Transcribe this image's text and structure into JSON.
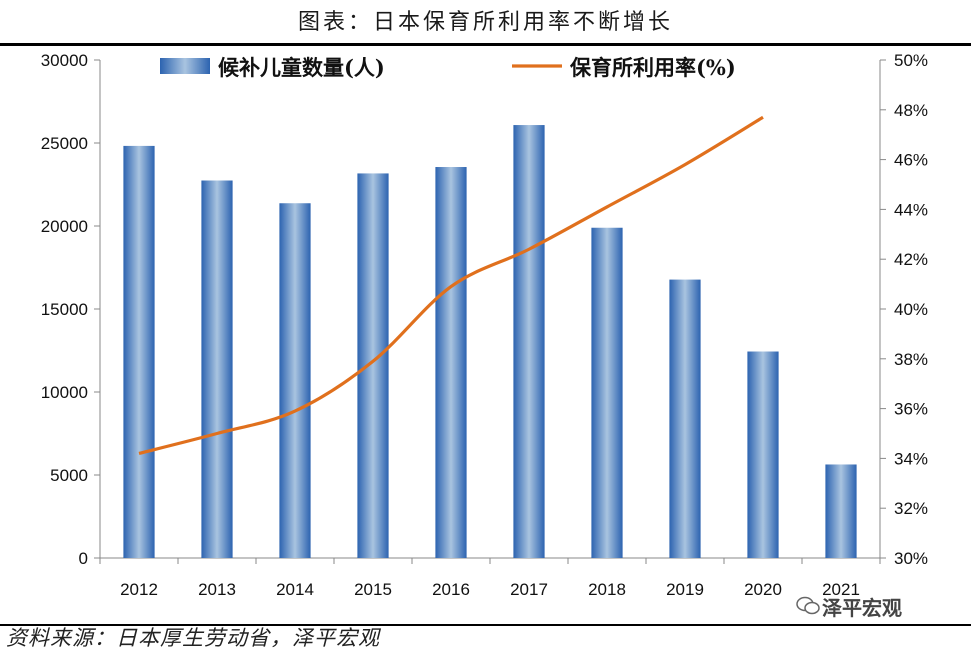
{
  "title": "图表：日本保育所利用率不断增长",
  "source": "资料来源：日本厚生劳动省，泽平宏观",
  "watermark": "泽平宏观",
  "chart_data": {
    "type": "bar+line",
    "categories": [
      "2012",
      "2013",
      "2014",
      "2015",
      "2016",
      "2017",
      "2018",
      "2019",
      "2020",
      "2021"
    ],
    "series": [
      {
        "name": "候补儿童数量(人)",
        "type": "bar",
        "axis": "left",
        "values": [
          24825,
          22741,
          21371,
          23167,
          23553,
          26081,
          19895,
          16772,
          12439,
          5634
        ],
        "color": "#3f7fc4"
      },
      {
        "name": "保育所利用率(%)",
        "type": "line",
        "axis": "right",
        "values": [
          34.2,
          35.0,
          35.9,
          37.9,
          40.9,
          42.4,
          44.1,
          45.8,
          47.7,
          null
        ],
        "color": "#e0701d"
      }
    ],
    "y_left": {
      "min": 0,
      "max": 30000,
      "ticks": [
        0,
        5000,
        10000,
        15000,
        20000,
        25000,
        30000
      ],
      "tick_labels": [
        "0",
        "5000",
        "10000",
        "15000",
        "20000",
        "25000",
        "30000"
      ]
    },
    "y_right": {
      "min": 30,
      "max": 50,
      "ticks": [
        30,
        32,
        34,
        36,
        38,
        40,
        42,
        44,
        46,
        48,
        50
      ],
      "tick_labels": [
        "30%",
        "32%",
        "34%",
        "36%",
        "38%",
        "40%",
        "42%",
        "44%",
        "46%",
        "48%",
        "50%"
      ]
    },
    "legend": {
      "placement": "top",
      "entries": [
        "候补儿童数量(人)",
        "保育所利用率(%)"
      ]
    }
  }
}
